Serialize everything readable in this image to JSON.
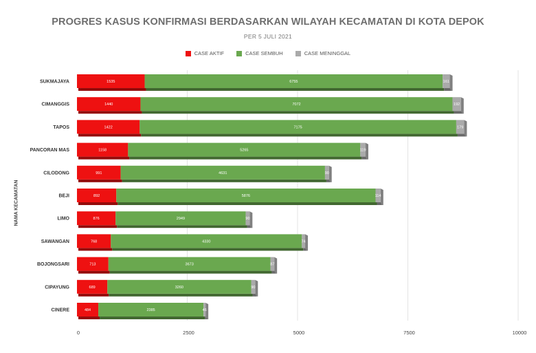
{
  "chart_data": {
    "type": "bar",
    "orientation": "horizontal",
    "stacked": true,
    "title": "PROGRES KASUS KONFIRMASI BERDASARKAN WILAYAH KECAMATAN DI KOTA DEPOK",
    "subtitle": "PER 5 JULI 2021",
    "ylabel": "NAMA KECAMATAN",
    "xlabel": "",
    "xlim": [
      0,
      10000
    ],
    "xticks": [
      "0",
      "2500",
      "5000",
      "7500",
      "10000"
    ],
    "legend_position": "top",
    "grid": true,
    "categories": [
      "SUKMAJAYA",
      "CIMANGGIS",
      "TAPOS",
      "PANCORAN MAS",
      "CILODONG",
      "BEJI",
      "LIMO",
      "SAWANGAN",
      "BOJONGSARI",
      "CIPAYUNG",
      "CINERE"
    ],
    "series": [
      {
        "name": "CASE AKTIF",
        "color": "#ee1111",
        "values": [
          1535,
          1440,
          1422,
          1158,
          991,
          892,
          876,
          768,
          713,
          689,
          484
        ],
        "labels": [
          "1535",
          "1440",
          "1422",
          "1158",
          "991",
          "892",
          "876",
          "768",
          "713",
          "689",
          "484"
        ]
      },
      {
        "name": "CASE SEMBUH",
        "color": "#6aa84f",
        "values": [
          6755,
          7072,
          7175,
          5265,
          4631,
          5876,
          2949,
          4330,
          3673,
          3260,
          2385
        ],
        "labels": [
          "6755",
          "7072",
          "7175",
          "5265",
          "4631",
          "5876",
          "2949",
          "4330",
          "3673",
          "3260",
          "2385"
        ]
      },
      {
        "name": "CASE MENINGGAL",
        "color": "#aaaaaa",
        "values": [
          161,
          192,
          179,
          119,
          90,
          114,
          90,
          74,
          87,
          90,
          46
        ],
        "labels": [
          "161",
          "192",
          "179",
          "119",
          "90",
          "114",
          "90",
          "74",
          "87",
          "90",
          "46"
        ]
      }
    ]
  }
}
